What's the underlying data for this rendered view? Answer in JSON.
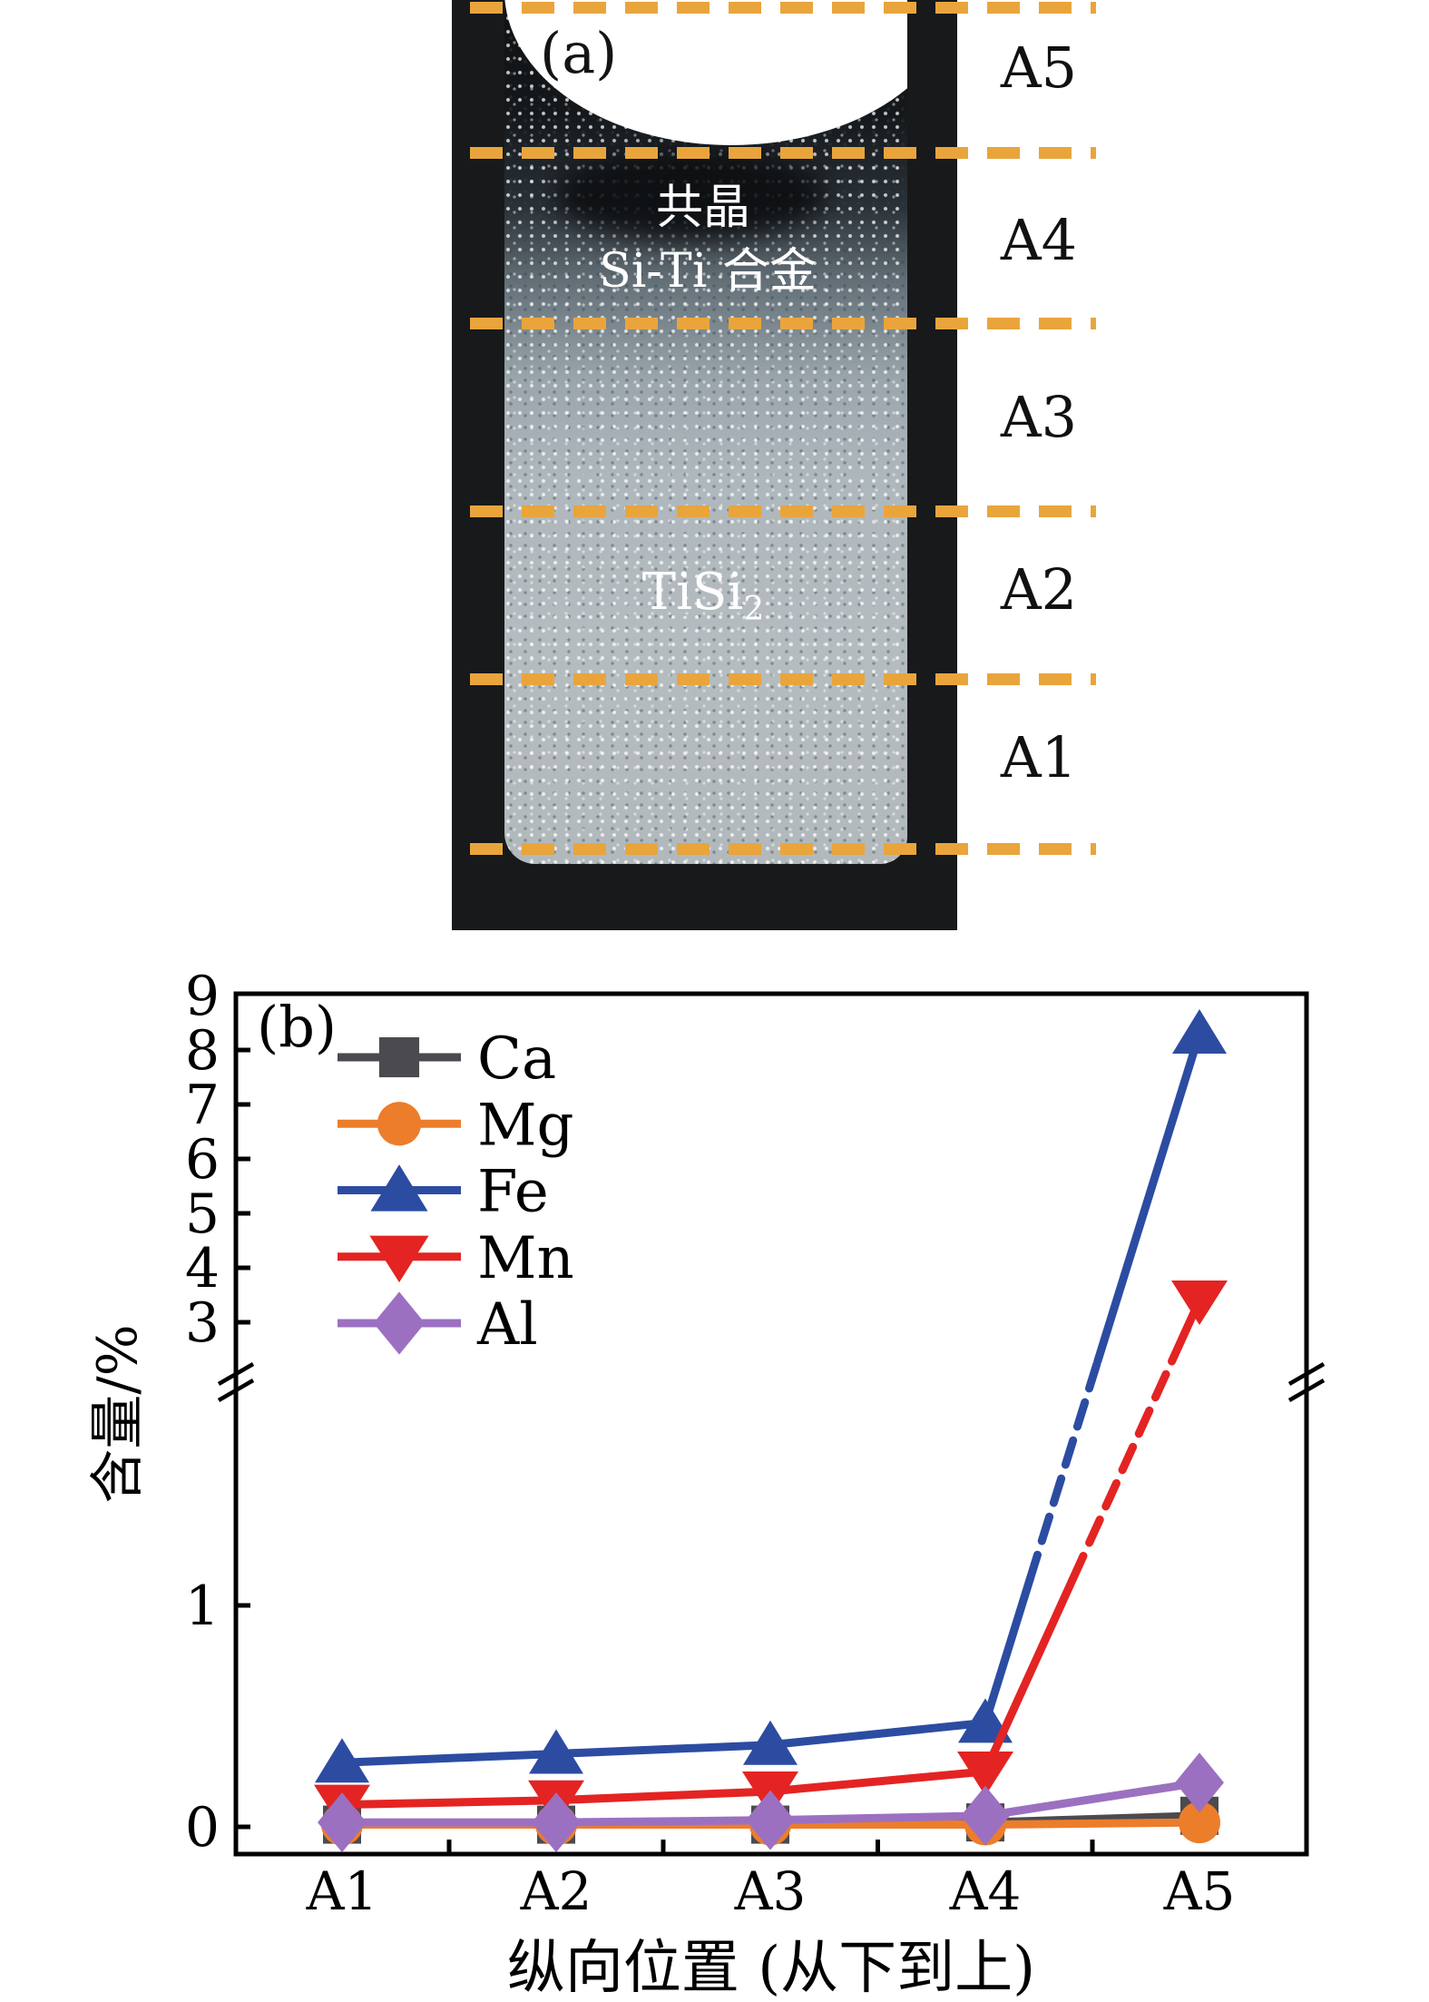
{
  "figure_a": {
    "panel_label": "(a)",
    "annotations": {
      "eutectic_label_line1": "共晶",
      "eutectic_label_line2": "Si-Ti 合金",
      "phase_label_base": "TiSi",
      "phase_label_sub": "2"
    },
    "region_labels": [
      "A5",
      "A4",
      "A3",
      "A2",
      "A1"
    ],
    "dashed_line_color": "#E9A53C"
  },
  "chart_data": {
    "type": "line",
    "panel_label": "(b)",
    "title": "",
    "xlabel": "纵向位置 (从下到上)",
    "ylabel": "含量/%",
    "categories": [
      "A1",
      "A2",
      "A3",
      "A4",
      "A5"
    ],
    "series": [
      {
        "name": "Ca",
        "marker": "square",
        "color": "#4A4A4F",
        "values": [
          0.01,
          0.01,
          0.01,
          0.02,
          0.05
        ]
      },
      {
        "name": "Mg",
        "marker": "circle",
        "color": "#EC7D2B",
        "values": [
          0.01,
          0.01,
          0.01,
          0.01,
          0.02
        ]
      },
      {
        "name": "Fe",
        "marker": "triangle-up",
        "color": "#2C4CA2",
        "values": [
          0.29,
          0.33,
          0.37,
          0.47,
          8.3
        ]
      },
      {
        "name": "Mn",
        "marker": "triangle-down",
        "color": "#E32423",
        "values": [
          0.1,
          0.12,
          0.16,
          0.25,
          3.4
        ]
      },
      {
        "name": "Al",
        "marker": "diamond",
        "color": "#9C70C1",
        "values": [
          0.02,
          0.02,
          0.03,
          0.05,
          0.2
        ]
      }
    ],
    "y_axis": {
      "broken": true,
      "lower_ticks": [
        0,
        1
      ],
      "upper_ticks": [
        3,
        4,
        5,
        6,
        7,
        8,
        9
      ],
      "lower_range": [
        0,
        2
      ],
      "upper_range": [
        3,
        9
      ]
    },
    "legend_position": "upper-left",
    "grid": false
  }
}
